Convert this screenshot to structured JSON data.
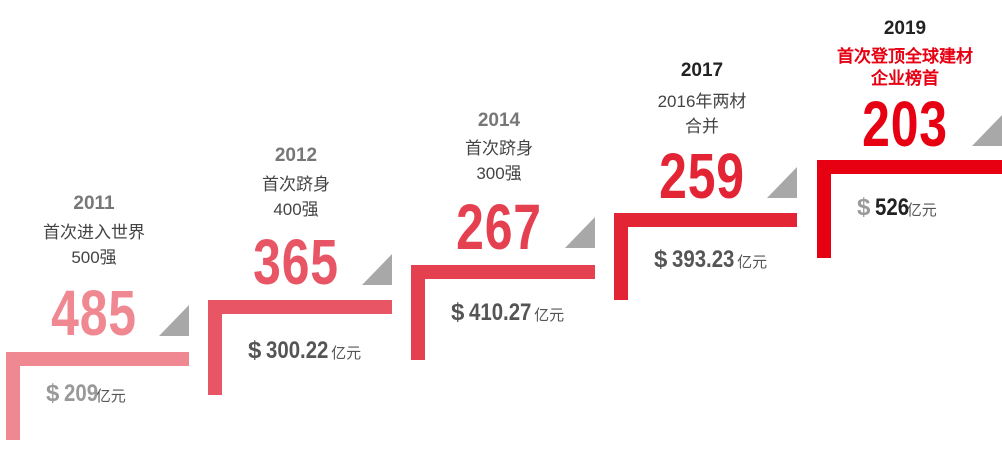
{
  "currency_symbol": "$",
  "unit": "亿元",
  "steps": [
    {
      "year": "2011",
      "desc": [
        "首次进入世界",
        "500强"
      ],
      "rank": "485",
      "revenue": "209",
      "color": "#f08892"
    },
    {
      "year": "2012",
      "desc": [
        "首次跻身",
        "400强"
      ],
      "rank": "365",
      "revenue": "300.22",
      "color": "#e85665"
    },
    {
      "year": "2014",
      "desc": [
        "首次跻身",
        "300强"
      ],
      "rank": "267",
      "revenue": "410.27",
      "color": "#e5404f"
    },
    {
      "year": "2017",
      "desc": [
        "2016年两材",
        "合并"
      ],
      "rank": "259",
      "revenue": "393.23",
      "color": "#e32434"
    },
    {
      "year": "2019",
      "desc": [
        "首次登顶全球建材",
        "企业榜首"
      ],
      "rank": "203",
      "revenue": "526",
      "color": "#e60012"
    }
  ]
}
